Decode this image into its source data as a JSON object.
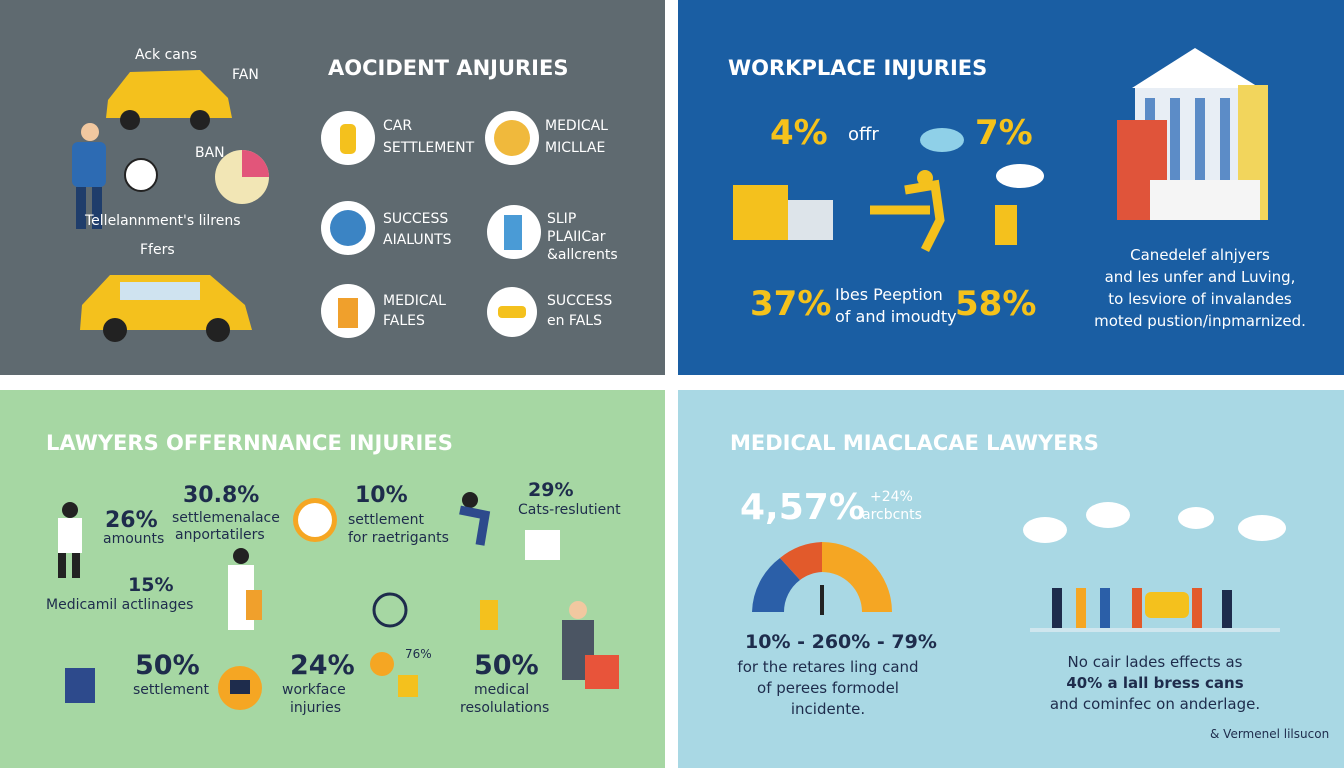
{
  "panels": [
    {
      "title": "AOCIDENT ANJURIES",
      "labels": [
        "Ack cans",
        "FAN",
        "BAN",
        "Tellelannment's lilrens",
        "Ffers"
      ],
      "items": [
        {
          "lines": [
            "CAR",
            "SETTLEMENT"
          ]
        },
        {
          "lines": [
            "MEDICAL",
            "MICLLAE"
          ]
        },
        {
          "lines": [
            "SUCCESS",
            "AIALUNTS"
          ]
        },
        {
          "lines": [
            "SLIP",
            "PLAIICar",
            "&allcrents"
          ]
        },
        {
          "lines": [
            "MEDICAL",
            "FALES"
          ]
        },
        {
          "lines": [
            "SUCCESS",
            "en FALS"
          ]
        }
      ]
    },
    {
      "title": "WORKPLACE INJURIES",
      "stats": [
        "4%",
        "offr",
        "7%",
        "37%",
        "Ibes Peeption",
        "of and imoudty",
        "58%"
      ],
      "paragraph": [
        "Canedelef alnjyers",
        "and les unfer and Luving,",
        "to lesviore of invalandes",
        "moted pustion/inpmarnized."
      ]
    },
    {
      "title": "LAWYERS OFFERNNANCE INJURIES",
      "stats": [
        {
          "value": "26%",
          "lines": [
            "amounts"
          ]
        },
        {
          "value": "30.8%",
          "lines": [
            "settlemenalace",
            "anportatilers"
          ]
        },
        {
          "value": "10%",
          "lines": [
            "settlement",
            "for raetrigants"
          ]
        },
        {
          "value": "29%",
          "lines": [
            "Cats-reslutient"
          ]
        },
        {
          "value": "15%",
          "lines": [
            "Medicamil actlinages"
          ]
        },
        {
          "value": "50%",
          "lines": [
            "settlement"
          ]
        },
        {
          "value": "24%",
          "lines": [
            "workface",
            "injuries"
          ]
        },
        {
          "value": "76%",
          "lines": []
        },
        {
          "value": "50%",
          "lines": [
            "medical",
            "resolulations"
          ]
        }
      ]
    },
    {
      "title": "MEDICAL MIACLACAE LAWYERS",
      "headline": "4,57%",
      "sub": [
        "+24%",
        "arcbcnts"
      ],
      "range": "10% - 260% - 79%",
      "left_text": [
        "for the retares ling cand",
        "of perees formodel",
        "incidente."
      ],
      "right_text": [
        "No cair lades effects as",
        "40% a lall bress cans",
        "and cominfec on anderlage."
      ],
      "footnote": "& Vermenel lilsucon"
    }
  ]
}
